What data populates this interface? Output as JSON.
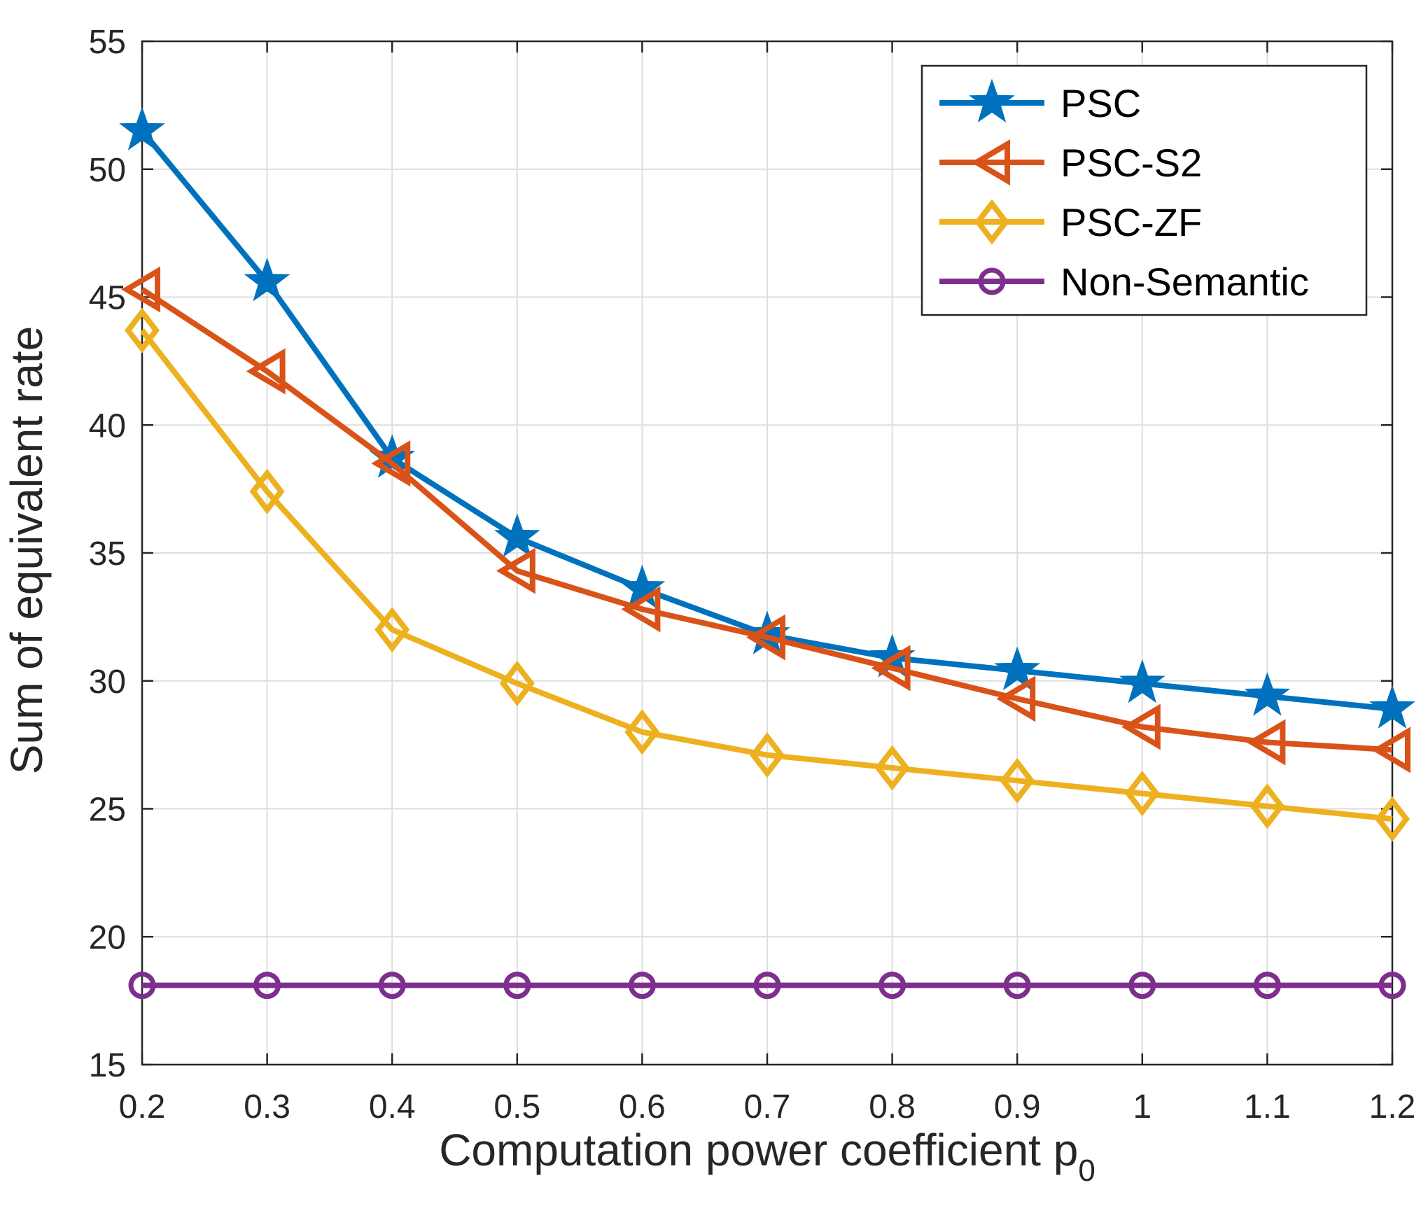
{
  "chart_data": {
    "type": "line",
    "title": "",
    "xlabel": "Computation power coefficient p",
    "xlabel_subscript": "0",
    "ylabel": "Sum of equivalent rate",
    "x": [
      0.2,
      0.3,
      0.4,
      0.5,
      0.6,
      0.7,
      0.8,
      0.9,
      1.0,
      1.1,
      1.2
    ],
    "xlim": [
      0.2,
      1.2
    ],
    "ylim": [
      15,
      55
    ],
    "xticks": [
      "0.2",
      "0.3",
      "0.4",
      "0.5",
      "0.6",
      "0.7",
      "0.8",
      "0.9",
      "1",
      "1.1",
      "1.2"
    ],
    "yticks": [
      "15",
      "20",
      "25",
      "30",
      "35",
      "40",
      "45",
      "50",
      "55"
    ],
    "grid": true,
    "legend_position": "top-right",
    "series": [
      {
        "name": "PSC",
        "color": "#0072BD",
        "marker": "star",
        "values": [
          51.5,
          45.6,
          38.7,
          35.6,
          33.6,
          31.8,
          30.9,
          30.4,
          29.9,
          29.4,
          28.9
        ]
      },
      {
        "name": "PSC-S2",
        "color": "#D95319",
        "marker": "triangle-left",
        "values": [
          45.3,
          42.1,
          38.5,
          34.3,
          32.8,
          31.7,
          30.5,
          29.3,
          28.2,
          27.6,
          27.3
        ]
      },
      {
        "name": "PSC-ZF",
        "color": "#EDB120",
        "marker": "diamond",
        "values": [
          43.7,
          37.4,
          32.0,
          29.9,
          28.0,
          27.1,
          26.6,
          26.1,
          25.6,
          25.1,
          24.6
        ]
      },
      {
        "name": "Non-Semantic",
        "color": "#7E2F8E",
        "marker": "circle",
        "values": [
          18.1,
          18.1,
          18.1,
          18.1,
          18.1,
          18.1,
          18.1,
          18.1,
          18.1,
          18.1,
          18.1
        ]
      }
    ]
  }
}
